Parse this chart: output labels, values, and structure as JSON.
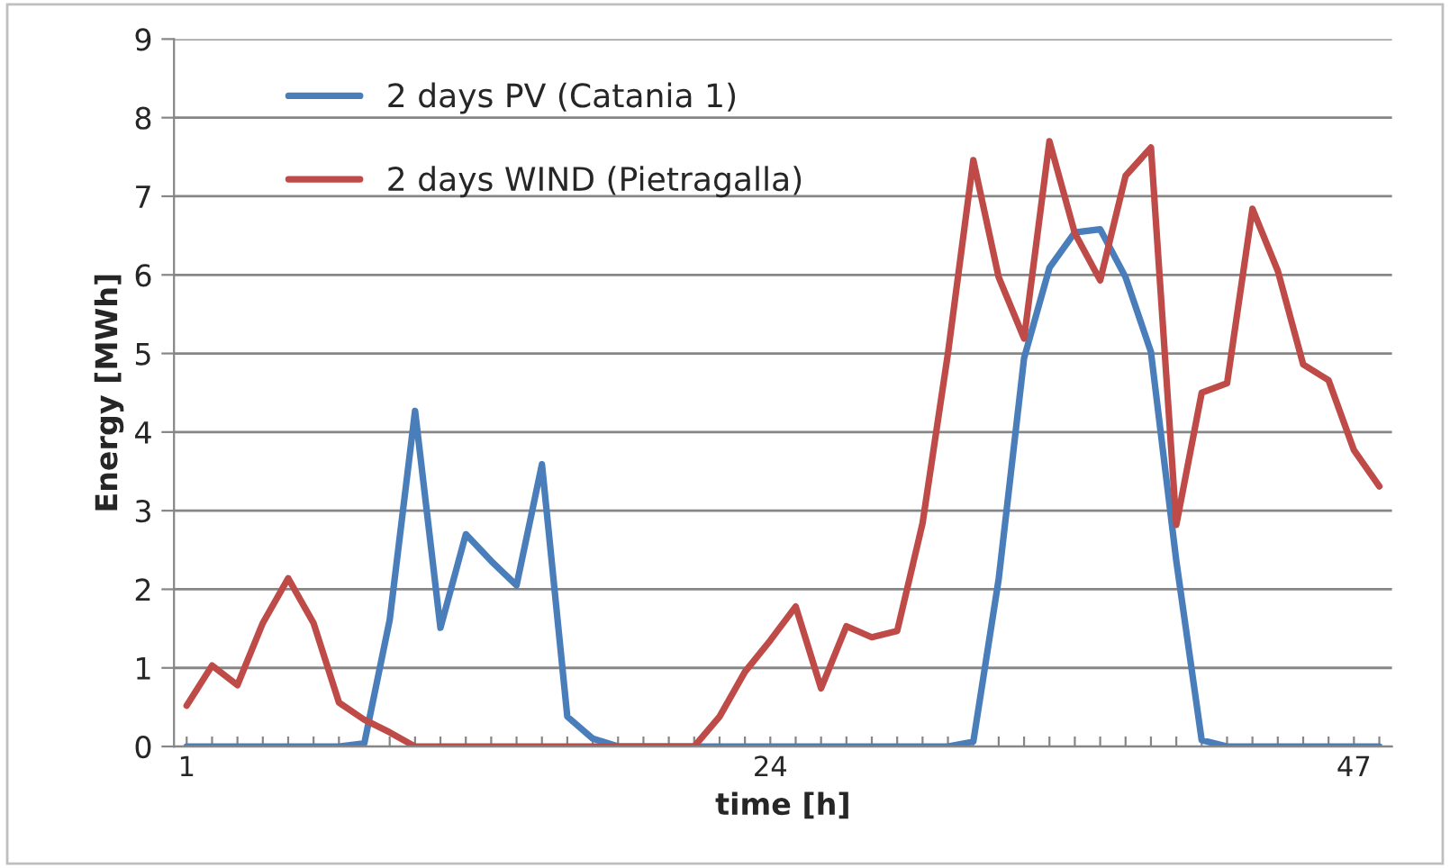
{
  "chart_data": {
    "type": "line",
    "xlabel": "time [h]",
    "ylabel": "Energy [MWh]",
    "categories": [
      "1",
      null,
      null,
      null,
      null,
      null,
      null,
      null,
      null,
      null,
      null,
      null,
      null,
      null,
      null,
      null,
      null,
      null,
      null,
      null,
      null,
      null,
      null,
      "24",
      null,
      null,
      null,
      null,
      null,
      null,
      null,
      null,
      null,
      null,
      null,
      null,
      null,
      null,
      null,
      null,
      null,
      null,
      null,
      null,
      null,
      null,
      "47",
      null
    ],
    "series": [
      {
        "name": "2 days PV (Catania 1)",
        "color": "#4a7ebb",
        "values": [
          0,
          0,
          0,
          0,
          0,
          0,
          0,
          0.04,
          1.61,
          4.27,
          1.51,
          2.7,
          2.36,
          2.05,
          3.59,
          0.38,
          0.1,
          0,
          0,
          0,
          0,
          0,
          0,
          0,
          0,
          0,
          0,
          0,
          0,
          0,
          0,
          0.06,
          2.13,
          4.94,
          6.09,
          6.54,
          6.58,
          5.97,
          5.02,
          2.36,
          0.08,
          0,
          0,
          0,
          0,
          0,
          0,
          0
        ]
      },
      {
        "name": "2 days WIND (Pietragalla)",
        "color": "#be4b48",
        "values": [
          0.52,
          1.03,
          0.78,
          1.57,
          2.14,
          1.57,
          0.56,
          0.34,
          0.18,
          0,
          0,
          0,
          0,
          0,
          0,
          0,
          0,
          0,
          0,
          0,
          0,
          0.38,
          0.95,
          1.35,
          1.78,
          0.74,
          1.53,
          1.39,
          1.47,
          2.84,
          5.0,
          7.46,
          5.97,
          5.19,
          7.7,
          6.53,
          5.93,
          7.26,
          7.62,
          2.82,
          4.5,
          4.62,
          6.84,
          6.05,
          4.86,
          4.66,
          3.77,
          3.31
        ]
      }
    ],
    "ylim": [
      0,
      9
    ],
    "yticks": [
      0,
      1,
      2,
      3,
      4,
      5,
      6,
      7,
      8,
      9
    ],
    "grid": "y",
    "legend": "top left",
    "line_style": "solid",
    "marker": "none"
  }
}
